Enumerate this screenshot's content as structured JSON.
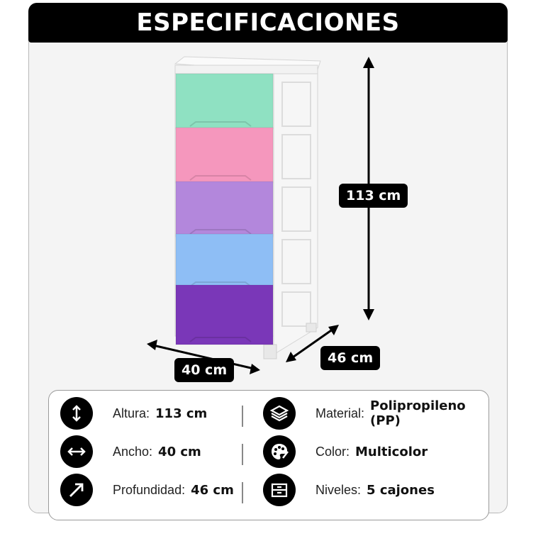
{
  "title": "ESPECIFICACIONES",
  "dimensions": {
    "height_label": "113 cm",
    "width_label": "40 cm",
    "depth_label": "46 cm"
  },
  "drawer_colors": [
    "#8fe1c2",
    "#f597bd",
    "#b387dc",
    "#8ebef5",
    "#7a37b8"
  ],
  "specs": [
    {
      "icon": "vertical-arrows-icon",
      "label": "Altura:",
      "value": "113 cm"
    },
    {
      "icon": "horizontal-arrows-icon",
      "label": "Ancho:",
      "value": "40 cm"
    },
    {
      "icon": "diagonal-arrow-icon",
      "label": "Profundidad:",
      "value": "46 cm"
    },
    {
      "icon": "layers-icon",
      "label": "Material:",
      "value": "Polipropileno (PP)"
    },
    {
      "icon": "palette-icon",
      "label": "Color:",
      "value": "Multicolor"
    },
    {
      "icon": "drawer-icon",
      "label": "Niveles:",
      "value": "5 cajones"
    }
  ]
}
